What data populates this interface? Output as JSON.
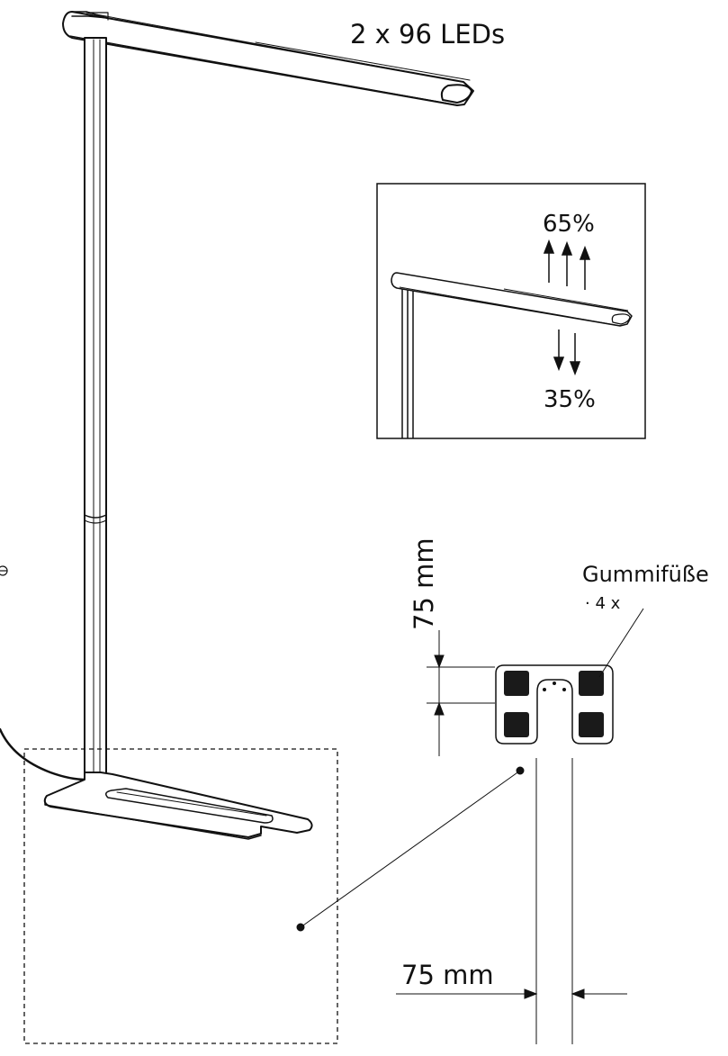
{
  "labels": {
    "led_count": "2 x 96 LEDs",
    "uplight_percent": "65%",
    "downlight_percent": "35%",
    "vertical_dimension": "75 mm",
    "horizontal_dimension": "75 mm",
    "rubber_feet": "Gummifüße",
    "rubber_feet_count": "· 4 x"
  },
  "colors": {
    "line": "#111111",
    "foot_pad": "#1a1a1a",
    "background": "#ffffff"
  }
}
